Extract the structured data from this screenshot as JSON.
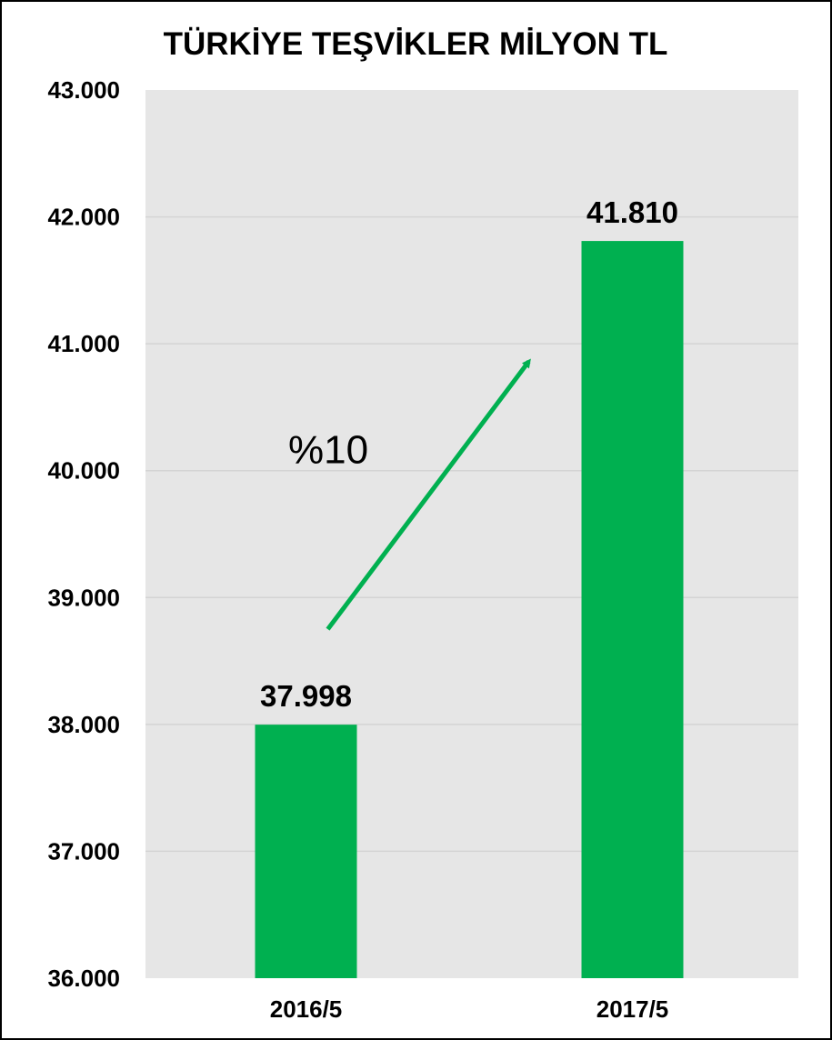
{
  "chart_data": {
    "type": "bar",
    "title": "TÜRKİYE TEŞVİKLER MİLYON TL",
    "categories": [
      "2016/5",
      "2017/5"
    ],
    "values": [
      37998,
      41810
    ],
    "data_labels": [
      "37.998",
      "41.810"
    ],
    "ylim": [
      36000,
      43000
    ],
    "yticks": [
      36000,
      37000,
      38000,
      39000,
      40000,
      41000,
      42000,
      43000
    ],
    "ytick_labels": [
      "36.000",
      "37.000",
      "38.000",
      "39.000",
      "40.000",
      "41.000",
      "42.000",
      "43.000"
    ],
    "grid": true,
    "legend": "none",
    "annotation": {
      "text": "%10"
    },
    "colors": {
      "bar": "#00b050",
      "arrow": "#00b050",
      "plot_bg": "#e6e6e6",
      "grid": "#d4d4d4"
    }
  }
}
